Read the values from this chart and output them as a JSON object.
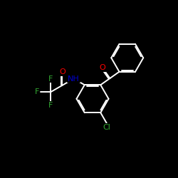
{
  "bg_color": "#000000",
  "bond_color": "#ffffff",
  "atom_colors": {
    "O": "#ff0000",
    "N": "#0000cc",
    "F": "#33aa33",
    "Cl": "#33aa33",
    "C": "#ffffff"
  },
  "figsize": [
    2.5,
    2.5
  ],
  "dpi": 100,
  "lw": 1.4,
  "ring_r": 0.9
}
